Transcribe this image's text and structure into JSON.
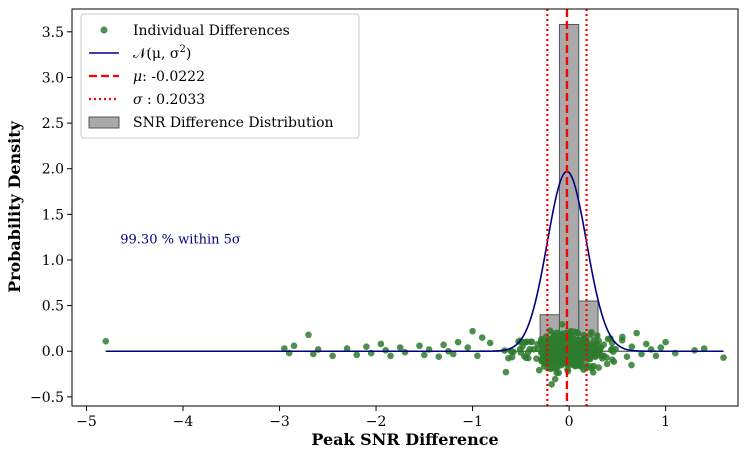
{
  "chart_data": {
    "type": "histogram-scatter",
    "xlabel": "Peak SNR Difference",
    "ylabel": "Probability Density",
    "xlim": [
      -5.15,
      1.75
    ],
    "ylim": [
      -0.6,
      3.75
    ],
    "xticks": [
      -5,
      -4,
      -3,
      -2,
      -1,
      0,
      1
    ],
    "xtick_labels": [
      "−5",
      "−4",
      "−3",
      "−2",
      "−1",
      "0",
      "1"
    ],
    "yticks": [
      -0.5,
      0.0,
      0.5,
      1.0,
      1.5,
      2.0,
      2.5,
      3.0,
      3.5
    ],
    "ytick_labels": [
      "−0.5",
      "0.0",
      "0.5",
      "1.0",
      "1.5",
      "2.0",
      "2.5",
      "3.0",
      "3.5"
    ],
    "grid": false,
    "legend_position": "top-left",
    "mean": -0.0222,
    "sigma": 0.2033,
    "histogram": {
      "name": "SNR Difference Distribution",
      "bin_edges": [
        -0.3,
        -0.1,
        0.1,
        0.3
      ],
      "densities": [
        0.4,
        3.58,
        0.55
      ],
      "base_range": [
        -4.8,
        1.6
      ],
      "color": "#a9a9a9"
    },
    "gaussian": {
      "name": "𝒩(μ, σ²)",
      "peak": 1.97,
      "color": "#000080"
    },
    "mean_line": {
      "name": "μ: -0.0222",
      "color": "#ff0000"
    },
    "sigma_lines": {
      "name": "σ : 0.2033",
      "color": "#ff0000"
    },
    "scatter": {
      "name": "Individual Differences",
      "color": "#2e7d2e",
      "outliers": [
        [
          -4.8,
          0.11
        ],
        [
          -2.95,
          0.03
        ],
        [
          -2.9,
          -0.02
        ],
        [
          -2.85,
          0.06
        ],
        [
          -2.7,
          0.18
        ],
        [
          -2.65,
          -0.03
        ],
        [
          -2.6,
          0.02
        ],
        [
          -2.45,
          -0.05
        ],
        [
          -2.3,
          0.03
        ],
        [
          -2.2,
          -0.04
        ],
        [
          -2.1,
          0.05
        ],
        [
          -2.05,
          -0.02
        ],
        [
          -1.95,
          0.08
        ],
        [
          -1.9,
          0.01
        ],
        [
          -1.85,
          -0.05
        ],
        [
          -1.75,
          0.04
        ],
        [
          -1.7,
          -0.01
        ],
        [
          -1.55,
          0.06
        ],
        [
          -1.5,
          -0.04
        ],
        [
          -1.45,
          0.02
        ],
        [
          -1.35,
          -0.06
        ],
        [
          -1.3,
          0.07
        ],
        [
          -1.25,
          0.0
        ],
        [
          -1.2,
          -0.03
        ],
        [
          -1.15,
          0.1
        ],
        [
          -1.05,
          0.04
        ],
        [
          -1.0,
          0.22
        ],
        [
          -0.95,
          -0.05
        ],
        [
          -0.9,
          0.15
        ],
        [
          0.55,
          0.12
        ],
        [
          0.6,
          -0.06
        ],
        [
          0.65,
          0.05
        ],
        [
          0.7,
          0.2
        ],
        [
          0.75,
          -0.03
        ],
        [
          0.8,
          0.08
        ],
        [
          0.85,
          0.02
        ],
        [
          0.9,
          -0.05
        ],
        [
          0.95,
          0.04
        ],
        [
          1.0,
          0.1
        ],
        [
          1.1,
          -0.02
        ],
        [
          1.3,
          0.01
        ],
        [
          1.4,
          0.03
        ],
        [
          1.6,
          -0.07
        ]
      ],
      "core_center": -0.02,
      "core_count": 640
    }
  },
  "legend": {
    "items": [
      {
        "key": "scatter",
        "label_prefix": "Individual Differences",
        "label_value": ""
      },
      {
        "key": "gaussian",
        "label_prefix": "𝒩(μ, σ",
        "label_value": "2",
        "label_suffix": ")"
      },
      {
        "key": "mean",
        "label_prefix": "μ",
        "label_value": ": -0.0222"
      },
      {
        "key": "sigma",
        "label_prefix": "σ",
        "label_value": " : 0.2033"
      },
      {
        "key": "hist",
        "label_prefix": "SNR Difference Distribution",
        "label_value": ""
      }
    ]
  },
  "annotation": {
    "text": "99.30 % within 5σ",
    "color": "#000080",
    "x": -4.65,
    "y": 1.18
  }
}
